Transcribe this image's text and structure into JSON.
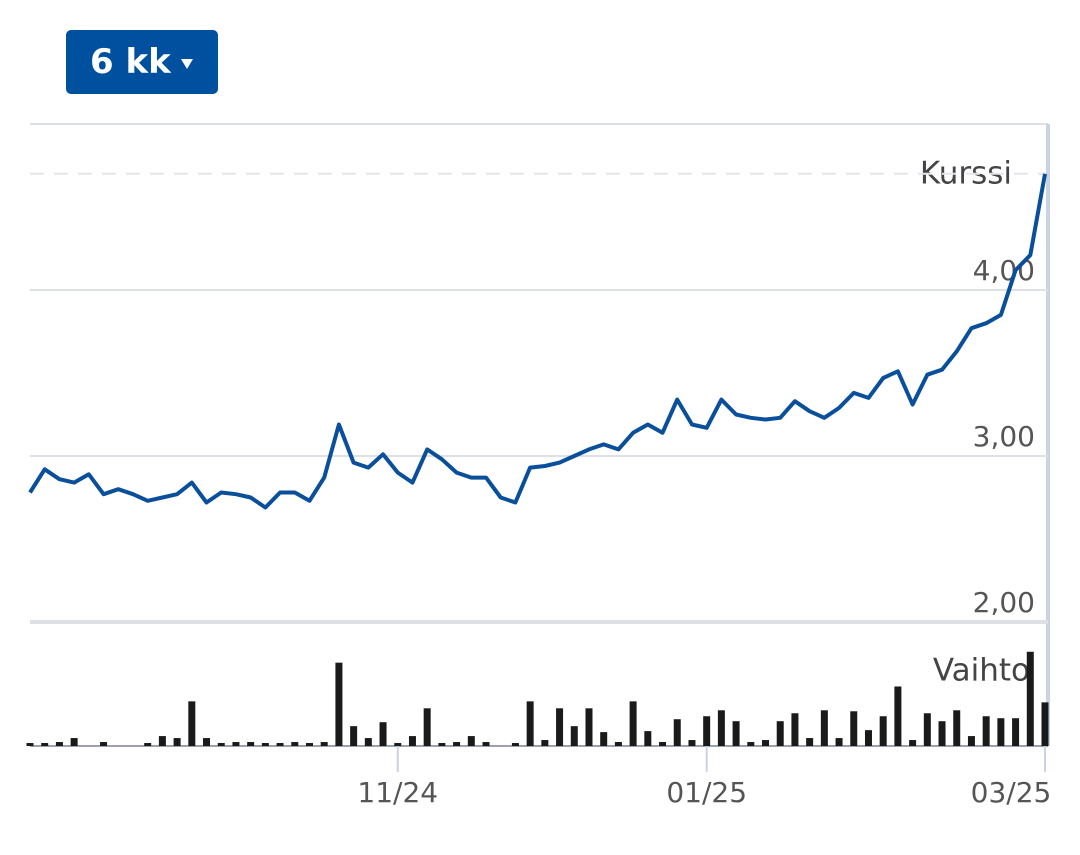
{
  "range_button": "6 kk",
  "chart_data": [
    {
      "type": "line",
      "title": "Kurssi",
      "color": "#0a4f9c",
      "categories": [
        null,
        null,
        null,
        null,
        null,
        null,
        null,
        null,
        null,
        null,
        null,
        null,
        null,
        null,
        null,
        null,
        null,
        null,
        null,
        null,
        null,
        null,
        null,
        null,
        null,
        "11/24",
        null,
        null,
        null,
        null,
        null,
        null,
        null,
        null,
        null,
        null,
        null,
        null,
        null,
        null,
        null,
        null,
        null,
        null,
        null,
        null,
        "01/25",
        null,
        null,
        null,
        null,
        null,
        null,
        null,
        null,
        null,
        null,
        null,
        null,
        null,
        null,
        null,
        null,
        null,
        null,
        null,
        null,
        null,
        null,
        "03/25"
      ],
      "values": [
        2.78,
        2.92,
        2.86,
        2.84,
        2.89,
        2.77,
        2.8,
        2.77,
        2.73,
        2.75,
        2.77,
        2.84,
        2.72,
        2.78,
        2.77,
        2.75,
        2.69,
        2.78,
        2.78,
        2.73,
        2.87,
        3.19,
        2.96,
        2.93,
        3.01,
        2.9,
        2.84,
        3.04,
        2.98,
        2.9,
        2.87,
        2.87,
        2.75,
        2.72,
        2.93,
        2.94,
        2.96,
        3.0,
        3.04,
        3.07,
        3.04,
        3.14,
        3.19,
        3.14,
        3.34,
        3.19,
        3.17,
        3.34,
        3.25,
        3.23,
        3.22,
        3.23,
        3.33,
        3.27,
        3.23,
        3.29,
        3.38,
        3.35,
        3.47,
        3.51,
        3.31,
        3.49,
        3.52,
        3.63,
        3.77,
        3.8,
        3.85,
        4.12,
        4.21,
        4.7
      ],
      "ylim": [
        2,
        5
      ],
      "yticks": [
        {
          "value": 2,
          "label": "2,00"
        },
        {
          "value": 3,
          "label": "3,00"
        },
        {
          "value": 4,
          "label": "4,00"
        }
      ],
      "grid": true
    },
    {
      "type": "bar",
      "title": "Vaihto",
      "color": "#1a1a1a",
      "values": [
        3,
        3,
        4,
        8,
        0,
        4,
        0,
        0,
        3,
        10,
        8,
        45,
        8,
        3,
        4,
        4,
        3,
        3,
        4,
        3,
        4,
        84,
        20,
        8,
        24,
        3,
        10,
        38,
        3,
        4,
        10,
        4,
        0,
        3,
        45,
        6,
        38,
        20,
        38,
        14,
        4,
        45,
        15,
        4,
        27,
        6,
        30,
        36,
        25,
        4,
        6,
        25,
        33,
        8,
        36,
        8,
        35,
        16,
        30,
        60,
        6,
        33,
        25,
        36,
        10,
        30,
        28,
        28,
        95,
        44
      ],
      "ylim": [
        0,
        125
      ]
    }
  ]
}
